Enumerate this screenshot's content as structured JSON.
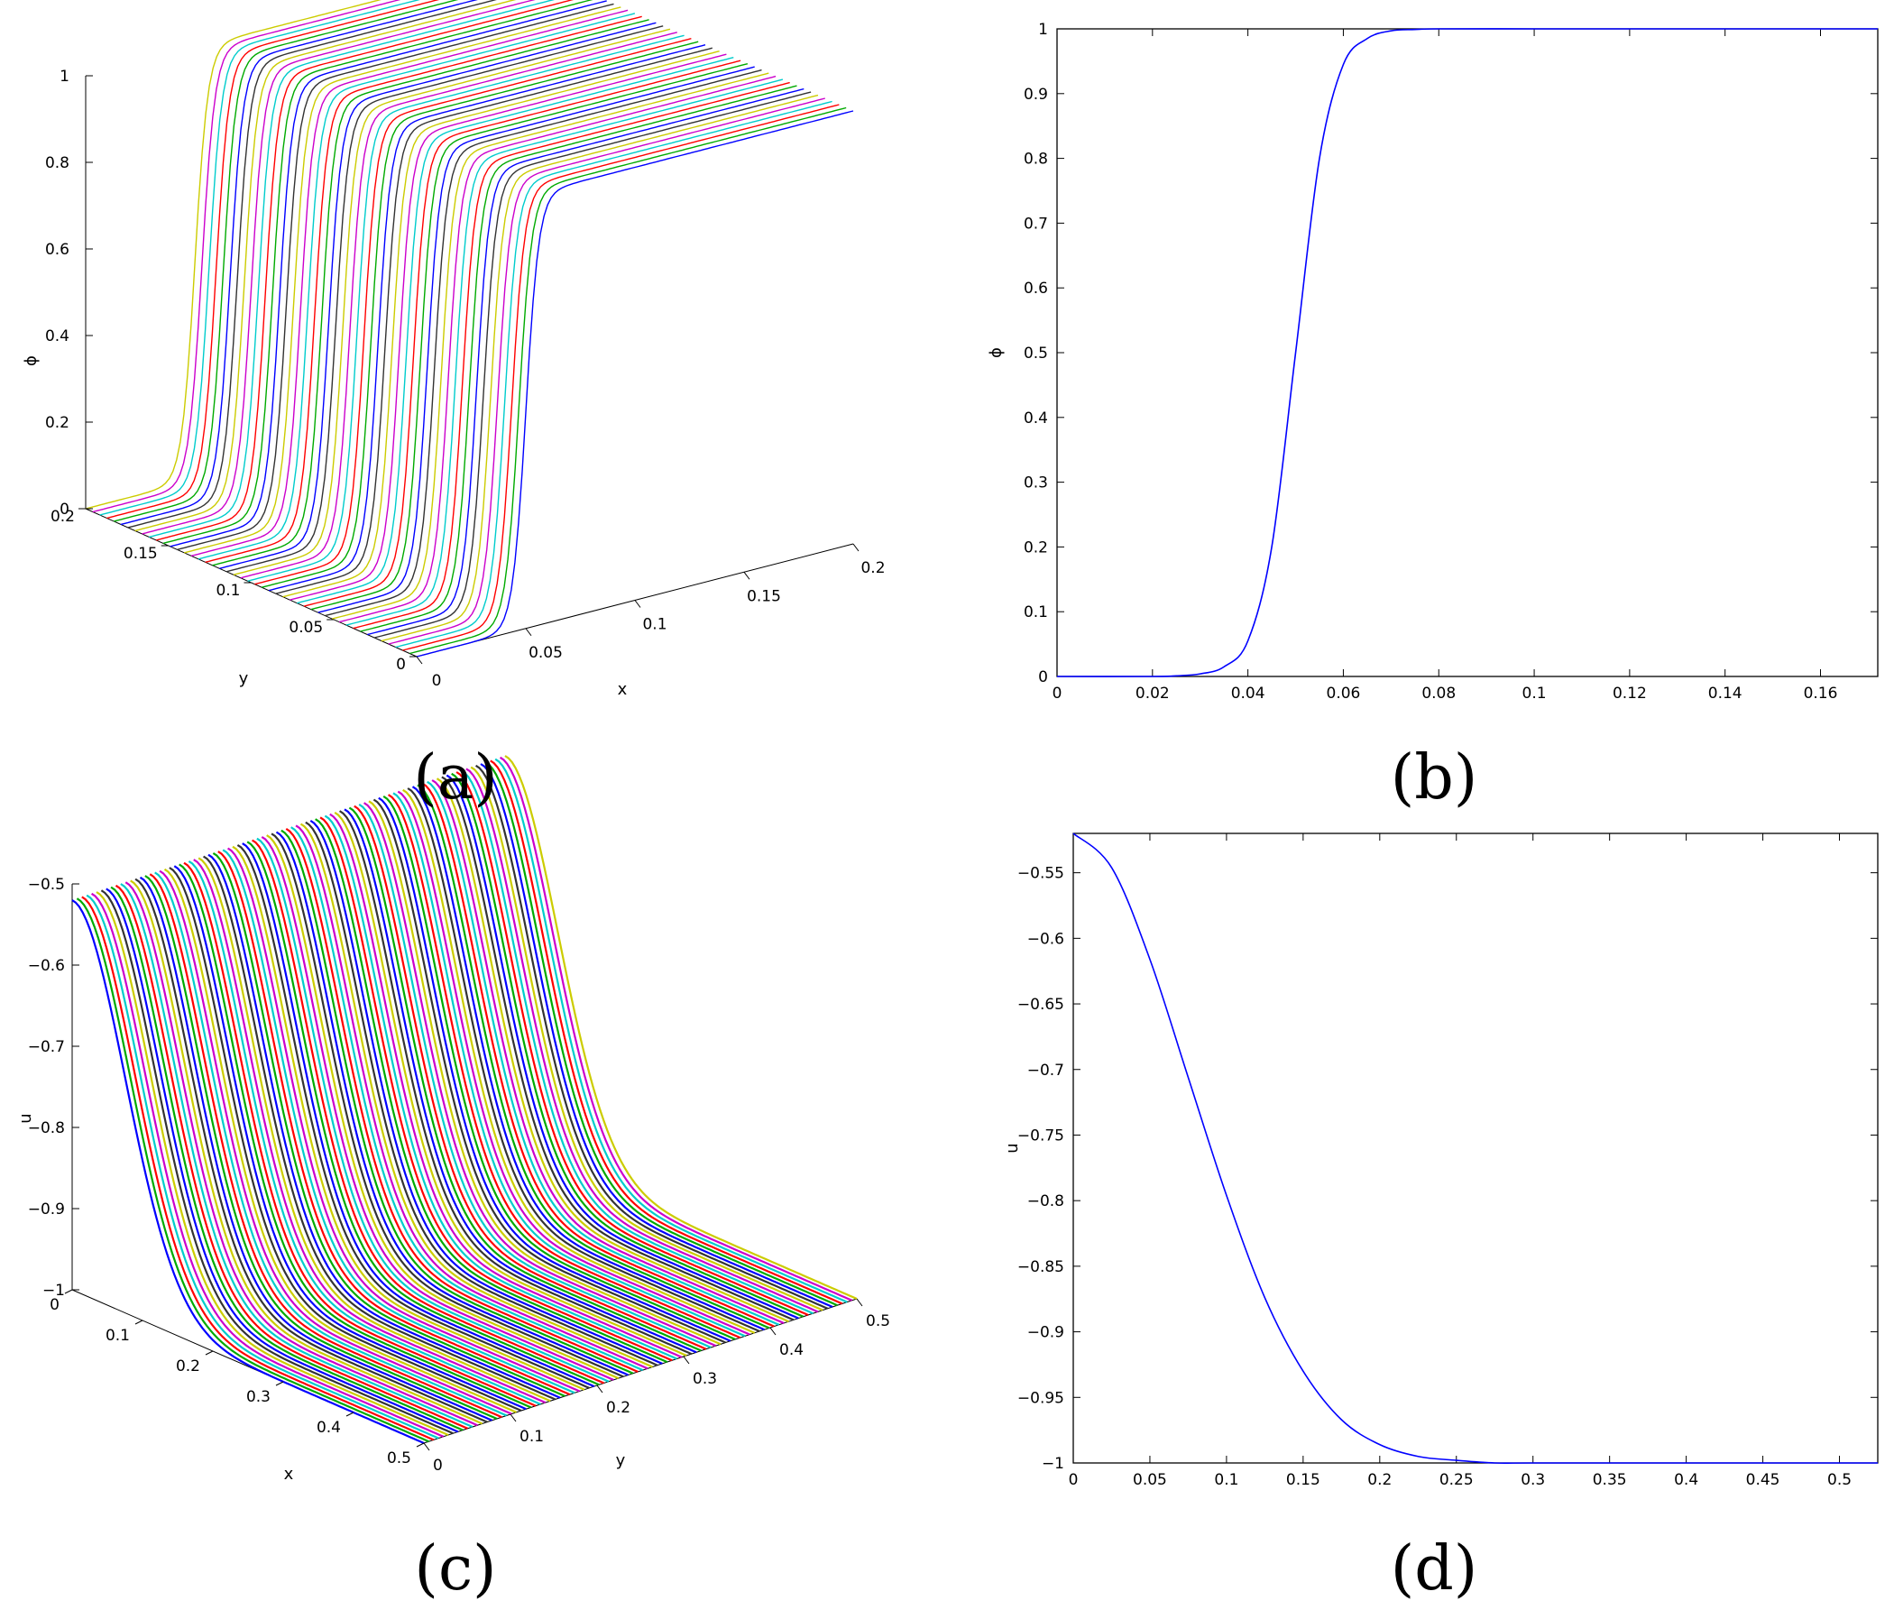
{
  "panels": {
    "a": "(a)",
    "b": "(b)",
    "c": "(c)",
    "d": "(d)"
  },
  "chart_data": [
    {
      "id": "a",
      "type": "surface3d",
      "xlabel": "x",
      "ylabel": "y",
      "zlabel": "ϕ",
      "xlim": [
        0,
        0.2
      ],
      "ylim": [
        0,
        0.2
      ],
      "zlim": [
        0,
        1
      ],
      "xticks": [
        "0",
        "0.05",
        "0.1",
        "0.15",
        "0.2"
      ],
      "yticks": [
        "0",
        "0.05",
        "0.1",
        "0.15",
        "0.2"
      ],
      "zticks": [
        "0",
        "0.2",
        "0.4",
        "0.6",
        "0.8",
        "1"
      ],
      "profile": {
        "form": "tanh",
        "center": 0.05,
        "width": 0.006
      },
      "series_colors": [
        "#0000ff",
        "#00aa00",
        "#ff0000",
        "#00cccc",
        "#cc00cc",
        "#cccc00",
        "#333333"
      ]
    },
    {
      "id": "b",
      "type": "line",
      "xlabel": "",
      "ylabel": "ϕ",
      "xlim": [
        0,
        0.172
      ],
      "ylim": [
        0,
        1
      ],
      "xticks": [
        "0",
        "0.02",
        "0.04",
        "0.06",
        "0.08",
        "0.1",
        "0.12",
        "0.14",
        "0.16"
      ],
      "yticks": [
        "0",
        "0.1",
        "0.2",
        "0.3",
        "0.4",
        "0.5",
        "0.6",
        "0.7",
        "0.8",
        "0.9",
        "1"
      ],
      "color": "#0000ff",
      "x": [
        0,
        0.02,
        0.025,
        0.03,
        0.035,
        0.04,
        0.045,
        0.05,
        0.055,
        0.06,
        0.065,
        0.07,
        0.075,
        0.08,
        0.1,
        0.12,
        0.14,
        0.16,
        0.172
      ],
      "y": [
        0,
        0,
        0.001,
        0.004,
        0.015,
        0.055,
        0.2,
        0.5,
        0.8,
        0.945,
        0.985,
        0.997,
        0.999,
        1,
        1,
        1,
        1,
        1,
        1
      ]
    },
    {
      "id": "c",
      "type": "surface3d",
      "xlabel": "x",
      "ylabel": "y",
      "zlabel": "u",
      "xlim": [
        0,
        0.5
      ],
      "ylim": [
        0,
        0.5
      ],
      "zlim": [
        -1,
        -0.5
      ],
      "xticks": [
        "0",
        "0.1",
        "0.2",
        "0.3",
        "0.4",
        "0.5"
      ],
      "yticks": [
        "0",
        "0.1",
        "0.2",
        "0.3",
        "0.4",
        "0.5"
      ],
      "zticks": [
        "−1",
        "−0.9",
        "−0.8",
        "−0.7",
        "−0.6",
        "−0.5"
      ],
      "profile": {
        "form": "gauss",
        "base": -1,
        "amp": 0.48,
        "sigma": 0.075
      },
      "series_colors": [
        "#0000ff",
        "#00aa00",
        "#ff0000",
        "#00cccc",
        "#cc00cc",
        "#cccc00",
        "#333333"
      ]
    },
    {
      "id": "d",
      "type": "line",
      "xlabel": "",
      "ylabel": "u",
      "xlim": [
        0,
        0.525
      ],
      "ylim": [
        -1,
        -0.52
      ],
      "xticks": [
        "0",
        "0.05",
        "0.1",
        "0.15",
        "0.2",
        "0.25",
        "0.3",
        "0.35",
        "0.4",
        "0.45",
        "0.5"
      ],
      "yticks": [
        "−1",
        "−0.95",
        "−0.9",
        "−0.85",
        "−0.8",
        "−0.75",
        "−0.7",
        "−0.65",
        "−0.6",
        "−0.55"
      ],
      "color": "#0000ff",
      "x": [
        0,
        0.025,
        0.05,
        0.075,
        0.1,
        0.125,
        0.15,
        0.175,
        0.2,
        0.225,
        0.25,
        0.275,
        0.3,
        0.4,
        0.525
      ],
      "y": [
        -0.52,
        -0.546,
        -0.616,
        -0.706,
        -0.796,
        -0.874,
        -0.93,
        -0.967,
        -0.986,
        -0.995,
        -0.998,
        -1,
        -1,
        -1,
        -1
      ]
    }
  ]
}
